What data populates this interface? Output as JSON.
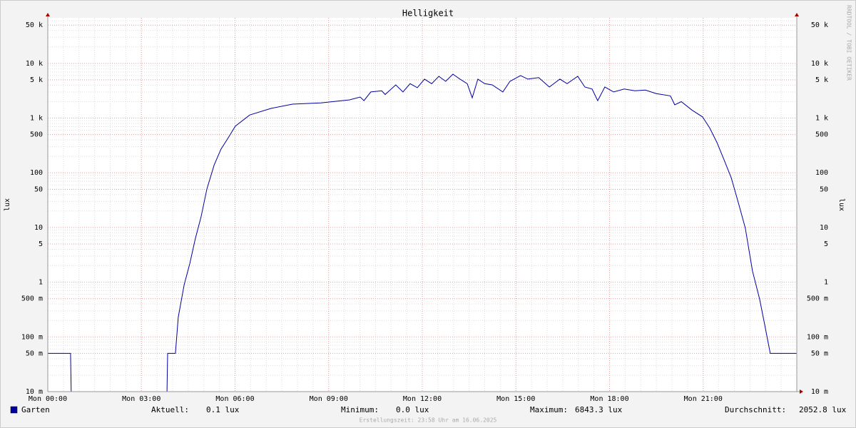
{
  "chart_data": {
    "type": "line",
    "title": "Helligkeit",
    "ylabel": "lux",
    "log_y": true,
    "grid": true,
    "xlim": [
      0,
      24
    ],
    "xticks": [
      {
        "value": 0,
        "label": "Mon 00:00"
      },
      {
        "value": 3,
        "label": "Mon 03:00"
      },
      {
        "value": 6,
        "label": "Mon 06:00"
      },
      {
        "value": 9,
        "label": "Mon 09:00"
      },
      {
        "value": 12,
        "label": "Mon 12:00"
      },
      {
        "value": 15,
        "label": "Mon 15:00"
      },
      {
        "value": 18,
        "label": "Mon 18:00"
      },
      {
        "value": 21,
        "label": "Mon 21:00"
      }
    ],
    "ylim": [
      0.01,
      68000
    ],
    "yticks": [
      {
        "value": 50000,
        "label": "50 k"
      },
      {
        "value": 10000,
        "label": "10 k"
      },
      {
        "value": 5000,
        "label": "5 k"
      },
      {
        "value": 1000,
        "label": "1 k"
      },
      500,
      100,
      50,
      10,
      5,
      1,
      {
        "value": 0.5,
        "label": "500 m"
      },
      {
        "value": 0.1,
        "label": "100 m"
      },
      {
        "value": 0.05,
        "label": "50 m"
      },
      {
        "value": 0.01,
        "label": "10 m"
      }
    ],
    "x": [
      0,
      0.73,
      0.75,
      3.82,
      3.84,
      4.09,
      4.18,
      4.37,
      4.55,
      4.73,
      4.91,
      5.1,
      5.33,
      5.55,
      5.74,
      6.01,
      6.47,
      7.15,
      7.84,
      8.75,
      9.67,
      10.01,
      10.13,
      10.35,
      10.7,
      10.81,
      11.15,
      11.38,
      11.61,
      11.84,
      12.07,
      12.3,
      12.53,
      12.75,
      12.98,
      13.21,
      13.44,
      13.6,
      13.78,
      14.0,
      14.24,
      14.58,
      14.81,
      15.15,
      15.38,
      15.73,
      16.07,
      16.41,
      16.64,
      16.98,
      17.21,
      17.44,
      17.62,
      17.85,
      18.13,
      18.47,
      18.81,
      19.15,
      19.5,
      19.95,
      20.09,
      20.3,
      20.64,
      20.98,
      21.21,
      21.44,
      21.67,
      21.9,
      22.13,
      22.35,
      22.58,
      22.81,
      22.97,
      23.15,
      24
    ],
    "series": [
      {
        "name": "Garten",
        "color": "#0000a0",
        "values": [
          0.05,
          0.05,
          0.01,
          0.01,
          0.05,
          0.05,
          0.23,
          0.9,
          2.2,
          6.3,
          15.5,
          51,
          139,
          270,
          400,
          710,
          1140,
          1500,
          1800,
          1900,
          2150,
          2430,
          2080,
          3000,
          3150,
          2700,
          4050,
          3000,
          4250,
          3600,
          5150,
          4250,
          5800,
          4700,
          6350,
          5150,
          4250,
          2350,
          5150,
          4250,
          4050,
          3000,
          4700,
          6000,
          5150,
          5500,
          3700,
          5150,
          4250,
          5800,
          3700,
          3400,
          2080,
          3700,
          3000,
          3400,
          3150,
          3250,
          2800,
          2550,
          1750,
          2000,
          1400,
          1050,
          660,
          360,
          172,
          81,
          28,
          9.8,
          1.6,
          0.49,
          0.17,
          0.05,
          0.05
        ]
      }
    ],
    "stats": [
      {
        "label": "Aktuell:",
        "value": "0.1 lux"
      },
      {
        "label": "Minimum:",
        "value": "0.0 lux"
      },
      {
        "label": "Maximum:",
        "value": "6843.3 lux"
      },
      {
        "label": "Durchschnitt:",
        "value": "2052.8 lux"
      }
    ],
    "footer": "Erstellungszeit: 23:58 Uhr am 16.06.2025",
    "watermark": "RRDTOOL / TOBI OETIKER"
  }
}
